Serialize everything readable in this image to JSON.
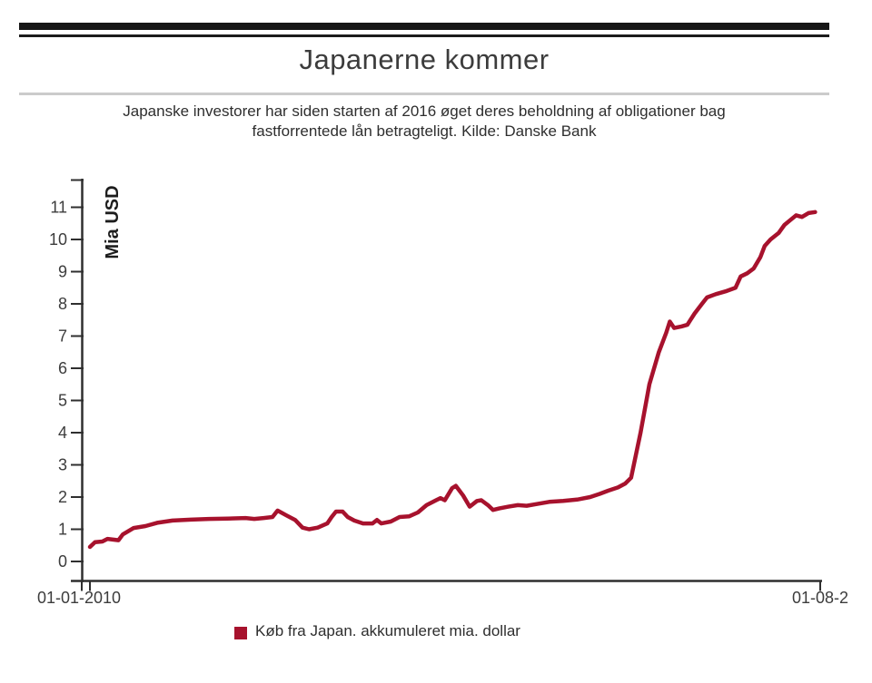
{
  "page": {
    "title": "Japanerne kommer",
    "subtitle_line1": "Japanske investorer har siden starten af 2016 øget deres beholdning af obligationer bag",
    "subtitle_line2": "fastforrentede lån betragteligt. Kilde: Danske Bank"
  },
  "chart_data": {
    "type": "line",
    "title": "Japanerne kommer",
    "ylabel": "Mia USD",
    "xlabel": "",
    "ylim": [
      0,
      11
    ],
    "y_ticks": [
      0,
      1,
      2,
      3,
      4,
      5,
      6,
      7,
      8,
      9,
      10,
      11
    ],
    "x_axis": {
      "start_label": "01-01-2010",
      "end_label": "01-08-2"
    },
    "grid": false,
    "legend_position": "bottom",
    "line_color": "#a7122d",
    "axis_color": "#2f2f2f",
    "series": [
      {
        "name": "Køb fra Japan. akkumuleret mia. dollar",
        "x_unit": "fraction of x-axis from 01-01-2010 to 01-08-2...",
        "points": [
          [
            0.0,
            0.45
          ],
          [
            0.007,
            0.6
          ],
          [
            0.017,
            0.62
          ],
          [
            0.024,
            0.7
          ],
          [
            0.039,
            0.66
          ],
          [
            0.045,
            0.84
          ],
          [
            0.06,
            1.04
          ],
          [
            0.076,
            1.1
          ],
          [
            0.092,
            1.2
          ],
          [
            0.113,
            1.27
          ],
          [
            0.138,
            1.3
          ],
          [
            0.163,
            1.32
          ],
          [
            0.188,
            1.33
          ],
          [
            0.213,
            1.35
          ],
          [
            0.225,
            1.32
          ],
          [
            0.238,
            1.35
          ],
          [
            0.25,
            1.38
          ],
          [
            0.257,
            1.58
          ],
          [
            0.269,
            1.43
          ],
          [
            0.281,
            1.29
          ],
          [
            0.291,
            1.05
          ],
          [
            0.3,
            1.0
          ],
          [
            0.312,
            1.05
          ],
          [
            0.325,
            1.18
          ],
          [
            0.331,
            1.38
          ],
          [
            0.337,
            1.55
          ],
          [
            0.346,
            1.55
          ],
          [
            0.353,
            1.38
          ],
          [
            0.362,
            1.27
          ],
          [
            0.374,
            1.18
          ],
          [
            0.387,
            1.18
          ],
          [
            0.393,
            1.29
          ],
          [
            0.399,
            1.18
          ],
          [
            0.412,
            1.24
          ],
          [
            0.424,
            1.38
          ],
          [
            0.437,
            1.4
          ],
          [
            0.449,
            1.52
          ],
          [
            0.461,
            1.75
          ],
          [
            0.474,
            1.9
          ],
          [
            0.48,
            1.97
          ],
          [
            0.486,
            1.9
          ],
          [
            0.496,
            2.28
          ],
          [
            0.501,
            2.35
          ],
          [
            0.511,
            2.05
          ],
          [
            0.52,
            1.7
          ],
          [
            0.53,
            1.88
          ],
          [
            0.536,
            1.9
          ],
          [
            0.545,
            1.75
          ],
          [
            0.552,
            1.6
          ],
          [
            0.561,
            1.65
          ],
          [
            0.573,
            1.7
          ],
          [
            0.586,
            1.75
          ],
          [
            0.598,
            1.73
          ],
          [
            0.611,
            1.78
          ],
          [
            0.629,
            1.85
          ],
          [
            0.648,
            1.88
          ],
          [
            0.667,
            1.92
          ],
          [
            0.685,
            2.0
          ],
          [
            0.698,
            2.1
          ],
          [
            0.71,
            2.2
          ],
          [
            0.723,
            2.3
          ],
          [
            0.733,
            2.42
          ],
          [
            0.741,
            2.6
          ],
          [
            0.754,
            4.0
          ],
          [
            0.766,
            5.5
          ],
          [
            0.779,
            6.5
          ],
          [
            0.789,
            7.1
          ],
          [
            0.794,
            7.45
          ],
          [
            0.8,
            7.25
          ],
          [
            0.81,
            7.3
          ],
          [
            0.818,
            7.35
          ],
          [
            0.828,
            7.7
          ],
          [
            0.838,
            8.0
          ],
          [
            0.845,
            8.2
          ],
          [
            0.857,
            8.3
          ],
          [
            0.872,
            8.4
          ],
          [
            0.884,
            8.5
          ],
          [
            0.891,
            8.85
          ],
          [
            0.9,
            8.95
          ],
          [
            0.909,
            9.1
          ],
          [
            0.918,
            9.45
          ],
          [
            0.924,
            9.8
          ],
          [
            0.932,
            10.0
          ],
          [
            0.943,
            10.2
          ],
          [
            0.951,
            10.45
          ],
          [
            0.959,
            10.6
          ],
          [
            0.967,
            10.75
          ],
          [
            0.975,
            10.7
          ],
          [
            0.984,
            10.82
          ],
          [
            0.993,
            10.85
          ]
        ]
      }
    ]
  }
}
